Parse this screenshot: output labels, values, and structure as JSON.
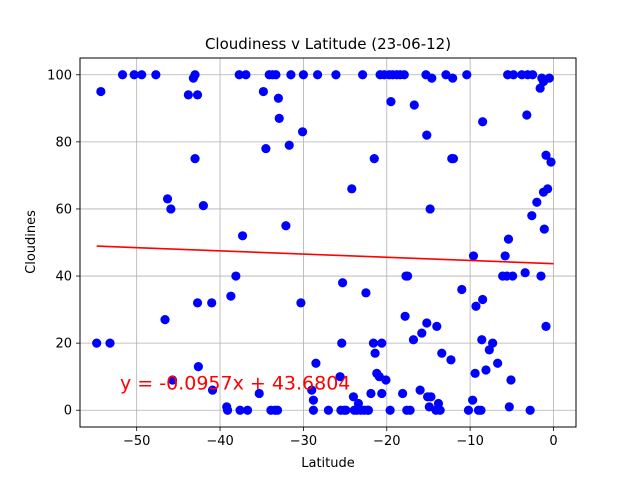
{
  "chart_data": {
    "type": "scatter",
    "title": "Cloudiness v Latitude (23-06-12)",
    "xlabel": "Latitude",
    "ylabel": "Cloudines",
    "xlim": [
      -56.8,
      2.7
    ],
    "ylim": [
      -5,
      105
    ],
    "xticks": [
      -50,
      -40,
      -30,
      -20,
      -10,
      0
    ],
    "yticks": [
      0,
      20,
      40,
      60,
      80,
      100
    ],
    "grid": true,
    "marker_color": "#0000ff",
    "line_color": "#ff0000",
    "regression": {
      "slope": -0.0957,
      "intercept": 43.6804,
      "x_range": [
        -54.8,
        0
      ]
    },
    "annotation": {
      "text": "y = -0.0957x + 43.6804",
      "x": -52,
      "y": 6.2
    },
    "points": [
      [
        -54.8,
        20
      ],
      [
        -54.3,
        95
      ],
      [
        -53.2,
        20
      ],
      [
        -51.7,
        100
      ],
      [
        -50.3,
        100
      ],
      [
        -49.4,
        100
      ],
      [
        -47.7,
        100
      ],
      [
        -46.6,
        27
      ],
      [
        -46.3,
        63
      ],
      [
        -45.9,
        60
      ],
      [
        -45.7,
        9
      ],
      [
        -43.8,
        94
      ],
      [
        -43.2,
        99
      ],
      [
        -43.0,
        100
      ],
      [
        -43.0,
        75
      ],
      [
        -42.7,
        94
      ],
      [
        -42.6,
        13
      ],
      [
        -42.7,
        32
      ],
      [
        -42.0,
        61
      ],
      [
        -41.0,
        32
      ],
      [
        -40.9,
        6
      ],
      [
        -39.2,
        1
      ],
      [
        -39.1,
        0
      ],
      [
        -38.7,
        34
      ],
      [
        -38.1,
        40
      ],
      [
        -37.7,
        100
      ],
      [
        -37.6,
        0
      ],
      [
        -37.3,
        52
      ],
      [
        -36.9,
        100
      ],
      [
        -36.7,
        0
      ],
      [
        -35.3,
        5
      ],
      [
        -34.8,
        95
      ],
      [
        -34.5,
        78
      ],
      [
        -34.1,
        100
      ],
      [
        -33.9,
        0
      ],
      [
        -33.7,
        100
      ],
      [
        -33.4,
        0
      ],
      [
        -33.3,
        100
      ],
      [
        -33.1,
        0
      ],
      [
        -33.0,
        93
      ],
      [
        -32.9,
        87
      ],
      [
        -32.1,
        55
      ],
      [
        -31.7,
        79
      ],
      [
        -31.5,
        100
      ],
      [
        -30.3,
        32
      ],
      [
        -30.1,
        83
      ],
      [
        -30.0,
        100
      ],
      [
        -29.0,
        6
      ],
      [
        -28.8,
        3
      ],
      [
        -28.8,
        0
      ],
      [
        -28.5,
        14
      ],
      [
        -28.3,
        100
      ],
      [
        -27.0,
        0
      ],
      [
        -26.1,
        100
      ],
      [
        -25.6,
        10
      ],
      [
        -25.5,
        0
      ],
      [
        -25.4,
        20
      ],
      [
        -25.3,
        38
      ],
      [
        -25.1,
        0
      ],
      [
        -24.9,
        0
      ],
      [
        -24.2,
        66
      ],
      [
        -24.0,
        4
      ],
      [
        -23.9,
        0
      ],
      [
        -23.6,
        0
      ],
      [
        -23.4,
        2
      ],
      [
        -23.1,
        0
      ],
      [
        -22.9,
        100
      ],
      [
        -22.7,
        0
      ],
      [
        -22.5,
        35
      ],
      [
        -22.3,
        0
      ],
      [
        -22.2,
        0
      ],
      [
        -21.9,
        5
      ],
      [
        -21.5,
        75
      ],
      [
        -21.6,
        20
      ],
      [
        -21.4,
        17
      ],
      [
        -21.2,
        11
      ],
      [
        -20.9,
        10
      ],
      [
        -20.8,
        100
      ],
      [
        -20.6,
        20
      ],
      [
        -20.6,
        5
      ],
      [
        -20.3,
        100
      ],
      [
        -20.1,
        9
      ],
      [
        -19.7,
        100
      ],
      [
        -19.6,
        0
      ],
      [
        -19.5,
        92
      ],
      [
        -19.3,
        100
      ],
      [
        -18.8,
        100
      ],
      [
        -18.4,
        100
      ],
      [
        -18.1,
        5
      ],
      [
        -17.9,
        100
      ],
      [
        -17.8,
        28
      ],
      [
        -17.7,
        40
      ],
      [
        -17.6,
        0
      ],
      [
        -17.5,
        40
      ],
      [
        -17.2,
        0
      ],
      [
        -16.8,
        21
      ],
      [
        -16.7,
        91
      ],
      [
        -16.0,
        6
      ],
      [
        -15.8,
        23
      ],
      [
        -15.3,
        100
      ],
      [
        -15.2,
        26
      ],
      [
        -15.2,
        82
      ],
      [
        -15.1,
        4
      ],
      [
        -14.9,
        1
      ],
      [
        -14.8,
        60
      ],
      [
        -14.7,
        4
      ],
      [
        -14.6,
        99
      ],
      [
        -14.1,
        0
      ],
      [
        -14.0,
        25
      ],
      [
        -13.8,
        2
      ],
      [
        -13.6,
        0
      ],
      [
        -13.4,
        17
      ],
      [
        -12.9,
        100
      ],
      [
        -12.3,
        15
      ],
      [
        -12.2,
        75
      ],
      [
        -12.1,
        99
      ],
      [
        -12.0,
        75
      ],
      [
        -11.0,
        36
      ],
      [
        -10.4,
        100
      ],
      [
        -10.2,
        0
      ],
      [
        -9.7,
        3
      ],
      [
        -9.6,
        46
      ],
      [
        -9.4,
        11
      ],
      [
        -9.3,
        31
      ],
      [
        -9.0,
        0
      ],
      [
        -8.7,
        0
      ],
      [
        -8.6,
        21
      ],
      [
        -8.5,
        33
      ],
      [
        -8.5,
        86
      ],
      [
        -8.1,
        12
      ],
      [
        -7.7,
        18
      ],
      [
        -7.3,
        20
      ],
      [
        -6.7,
        14
      ],
      [
        -6.1,
        40
      ],
      [
        -5.8,
        46
      ],
      [
        -5.6,
        40
      ],
      [
        -5.5,
        100
      ],
      [
        -5.4,
        51
      ],
      [
        -5.3,
        1
      ],
      [
        -5.1,
        9
      ],
      [
        -4.9,
        40
      ],
      [
        -4.8,
        100
      ],
      [
        -3.8,
        100
      ],
      [
        -3.4,
        41
      ],
      [
        -3.2,
        88
      ],
      [
        -3.1,
        100
      ],
      [
        -2.8,
        0
      ],
      [
        -2.6,
        58
      ],
      [
        -2.5,
        100
      ],
      [
        -2.0,
        62
      ],
      [
        -1.6,
        96
      ],
      [
        -1.5,
        40
      ],
      [
        -1.4,
        99
      ],
      [
        -1.2,
        98
      ],
      [
        -1.2,
        65
      ],
      [
        -1.1,
        54
      ],
      [
        -0.9,
        25
      ],
      [
        -0.9,
        76
      ],
      [
        -0.7,
        66
      ],
      [
        -0.5,
        99
      ],
      [
        -0.3,
        74
      ]
    ]
  }
}
